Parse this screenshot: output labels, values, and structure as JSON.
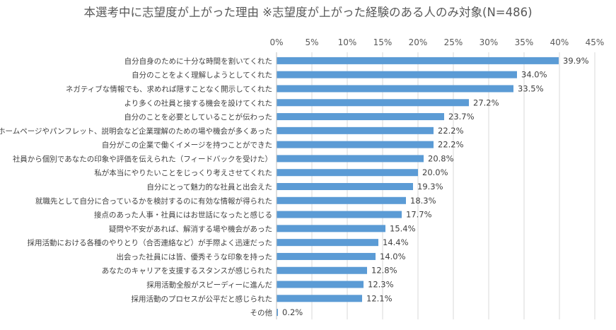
{
  "chart_data": {
    "type": "bar",
    "orientation": "horizontal",
    "title": "本選考中に志望度が上がった理由 ※志望度が上がった経験のある人のみ対象(N=486)",
    "xlabel": "",
    "ylabel": "",
    "xlim": [
      0,
      45
    ],
    "x_ticks": [
      "0%",
      "5%",
      "10%",
      "15%",
      "20%",
      "25%",
      "30%",
      "35%",
      "40%",
      "45%"
    ],
    "grid": true,
    "legend": "none",
    "bar_color": "#5B9BD5",
    "categories": [
      "自分自身のために十分な時間を割いてくれた",
      "自分のことをよく理解しようとしてくれた",
      "ネガティブな情報でも、求めれば隠すことなく開示してくれた",
      "より多くの社員と接する機会を設けてくれた",
      "自分のことを必要としていることが伝わった",
      "ホームページやパンフレット、説明会など企業理解のための場や機会が多くあった",
      "自分がこの企業で働くイメージを持つことができた",
      "社員から個別であなたの印象や評価を伝えられた（フィードバックを受けた）",
      "私が本当にやりたいことをじっくり考えさせてくれた",
      "自分にとって魅力的な社員と出会えた",
      "就職先として自分に合っているかを検討するのに有効な情報が得られた",
      "接点のあった人事・社員にはお世話になったと感じる",
      "疑問や不安があれば、解消する場や機会があった",
      "採用活動における各種のやりとり（合否連絡など）が手際よく迅速だった",
      "出会った社員には皆、優秀そうな印象を持った",
      "あなたのキャリアを支援するスタンスが感じられた",
      "採用活動全般がスピーディーに進んだ",
      "採用活動のプロセスが公平だと感じられた",
      "その他"
    ],
    "values": [
      39.9,
      34.0,
      33.5,
      27.2,
      23.7,
      22.2,
      22.2,
      20.8,
      20.0,
      19.3,
      18.3,
      17.7,
      15.4,
      14.4,
      14.0,
      12.8,
      12.3,
      12.1,
      0.2
    ],
    "value_labels": [
      "39.9%",
      "34.0%",
      "33.5%",
      "27.2%",
      "23.7%",
      "22.2%",
      "22.2%",
      "20.8%",
      "20.0%",
      "19.3%",
      "18.3%",
      "17.7%",
      "15.4%",
      "14.4%",
      "14.0%",
      "12.8%",
      "12.3%",
      "12.1%",
      "0.2%"
    ]
  }
}
